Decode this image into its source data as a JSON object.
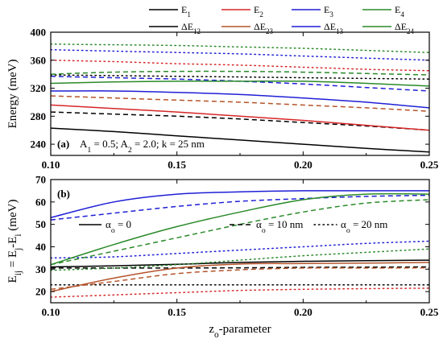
{
  "figure": {
    "xlabel": {
      "base": "z",
      "sub": "o",
      "rest": "-parameter"
    },
    "xticks": [
      "0.10",
      "0.15",
      "0.20",
      "0.25"
    ],
    "xlim": [
      0.1,
      0.25
    ],
    "legend": [
      {
        "base": "E",
        "sub": "1",
        "color": "#000000"
      },
      {
        "base": "E",
        "sub": "2",
        "color": "#d62728"
      },
      {
        "base": "E",
        "sub": "3",
        "color": "#1f1fd6"
      },
      {
        "base": "E",
        "sub": "4",
        "color": "#2a8a2a"
      },
      {
        "base": "ΔE",
        "sub": "12",
        "color": "#000000"
      },
      {
        "base": "ΔE",
        "sub": "23",
        "color": "#b5532a"
      },
      {
        "base": "ΔE",
        "sub": "13",
        "color": "#1f1fd6"
      },
      {
        "base": "ΔE",
        "sub": "24",
        "color": "#2a8a2a"
      }
    ]
  },
  "chart_data": [
    {
      "type": "line",
      "panel_label": "(a)",
      "annotation": {
        "p1": "A",
        "s1": "1",
        "v1": " = 0.5; A",
        "s2": "2",
        "v2": " = 2.0; k = 25 nm"
      },
      "ylabel": "Energy (meV)",
      "ylim": [
        224,
        400
      ],
      "yticks": [
        240,
        280,
        320,
        360,
        400
      ],
      "x": [
        0.1,
        0.125,
        0.15,
        0.175,
        0.2,
        0.225,
        0.25
      ],
      "series": [
        {
          "color": "#000000",
          "dash": "solid",
          "values": [
            263,
            258,
            252,
            246,
            240,
            234,
            229
          ]
        },
        {
          "color": "#000000",
          "dash": "dashed",
          "values": [
            286,
            283,
            280,
            276,
            271,
            266,
            260
          ]
        },
        {
          "color": "#000000",
          "dash": "dotted",
          "values": [
            339,
            338,
            337,
            336,
            335,
            334,
            333
          ]
        },
        {
          "color": "#d62728",
          "dash": "solid",
          "values": [
            296,
            291,
            286,
            280,
            274,
            267,
            260
          ]
        },
        {
          "color": "#b5532a",
          "dash": "dashed",
          "values": [
            309,
            306,
            303,
            300,
            296,
            292,
            287
          ]
        },
        {
          "color": "#d62728",
          "dash": "dotted",
          "values": [
            360,
            358,
            355,
            353,
            350,
            347,
            345
          ]
        },
        {
          "color": "#1f1fd6",
          "dash": "solid",
          "values": [
            316,
            316,
            314,
            311,
            306,
            300,
            292
          ]
        },
        {
          "color": "#1f1fd6",
          "dash": "dashed",
          "values": [
            337,
            335,
            333,
            330,
            326,
            321,
            316
          ]
        },
        {
          "color": "#1f1fd6",
          "dash": "dotted",
          "values": [
            375,
            373,
            371,
            369,
            366,
            363,
            360
          ]
        },
        {
          "color": "#2a8a2a",
          "dash": "solid",
          "values": [
            327,
            329,
            330,
            330,
            330,
            327,
            323
          ]
        },
        {
          "color": "#2a8a2a",
          "dash": "dashed",
          "values": [
            340,
            343,
            344,
            344,
            343,
            341,
            339
          ]
        },
        {
          "color": "#2a8a2a",
          "dash": "dotted",
          "values": [
            383,
            382,
            381,
            379,
            377,
            374,
            371
          ]
        }
      ]
    },
    {
      "type": "line",
      "panel_label": "(b)",
      "ylabel": {
        "a": "E",
        "as": "ij",
        "b": " = E",
        "bs": "j",
        "c": "-E",
        "cs": "i",
        "d": " (meV)"
      },
      "ylim": [
        15,
        70
      ],
      "yticks": [
        20,
        30,
        40,
        50,
        60,
        70
      ],
      "styles": [
        {
          "dash": "solid",
          "label": {
            "base": "α",
            "sub": "o",
            "rest": " = 0"
          }
        },
        {
          "dash": "dashed",
          "label": {
            "base": "α",
            "sub": "o",
            "rest": " = 10 nm"
          }
        },
        {
          "dash": "dotted",
          "label": {
            "base": "α",
            "sub": "o",
            "rest": " = 20 nm"
          }
        }
      ],
      "x": [
        0.1,
        0.125,
        0.15,
        0.175,
        0.2,
        0.225,
        0.25
      ],
      "series": [
        {
          "color": "#000000",
          "dash": "solid",
          "values": [
            31,
            31.5,
            32.2,
            33,
            33.5,
            33.8,
            34
          ]
        },
        {
          "color": "#000000",
          "dash": "dashed",
          "values": [
            30.5,
            30.5,
            30.5,
            30.6,
            30.8,
            30.9,
            31
          ]
        },
        {
          "color": "#000000",
          "dash": "dotted",
          "values": [
            23,
            23,
            23,
            23,
            23,
            23,
            23
          ]
        },
        {
          "color": "#b5532a",
          "dash": "solid",
          "values": [
            20,
            26,
            30.5,
            32.3,
            32.5,
            32.7,
            33
          ]
        },
        {
          "color": "#b5532a",
          "dash": "dashed",
          "values": [
            21,
            24.5,
            28,
            29.7,
            30.5,
            30.5,
            30.6
          ]
        },
        {
          "color": "#d62728",
          "dash": "dotted",
          "values": [
            17.5,
            18.5,
            19.5,
            20.5,
            21,
            21.3,
            21.5
          ]
        },
        {
          "color": "#1f1fd6",
          "dash": "solid",
          "values": [
            53,
            60,
            63.5,
            64.5,
            65,
            65,
            65
          ]
        },
        {
          "color": "#1f1fd6",
          "dash": "dashed",
          "values": [
            52,
            55,
            58,
            60.3,
            61.5,
            62.5,
            63
          ]
        },
        {
          "color": "#1f1fd6",
          "dash": "dotted",
          "values": [
            35,
            35.5,
            37,
            38.5,
            40,
            41.5,
            42.5
          ]
        },
        {
          "color": "#2a8a2a",
          "dash": "solid",
          "values": [
            32,
            41,
            49,
            55.5,
            61,
            63.5,
            63.5
          ]
        },
        {
          "color": "#2a8a2a",
          "dash": "dashed",
          "values": [
            32,
            38,
            44,
            50,
            55.5,
            59.5,
            61
          ]
        },
        {
          "color": "#2a8a2a",
          "dash": "dotted",
          "values": [
            29.5,
            30.5,
            32,
            34,
            36,
            37.5,
            39
          ]
        }
      ]
    }
  ]
}
